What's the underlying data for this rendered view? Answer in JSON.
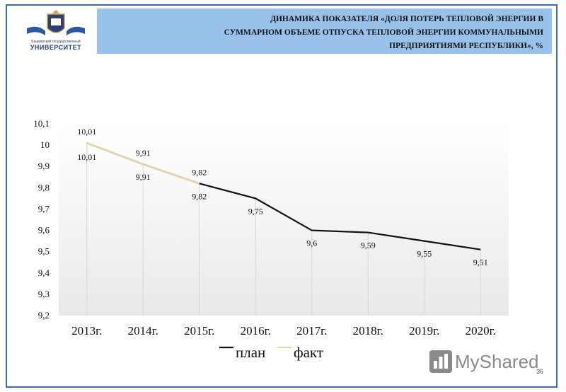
{
  "header": {
    "title_line1": "ДИНАМИКА ПОКАЗАТЕЛЯ «ДОЛЯ ПОТЕРЬ ТЕПЛОВОЙ ЭНЕРГИИ В",
    "title_line2": "СУММАРНОМ ОБЪЕМЕ ОТПУСКА ТЕПЛОВОЙ ЭНЕРГИИ КОММУНАЛЬНЫМИ",
    "title_line3": "ПРЕДПРИЯТИЯМИ РЕСПУБЛИКИ», %"
  },
  "logo": {
    "top_text": "Башкирский государственный",
    "name": "УНИВЕРСИТЕТ"
  },
  "page_number": "36",
  "watermark": "MyShared",
  "colors": {
    "plan": "#111111",
    "fact": "#e8d5a6",
    "header_bg": "#99c2eb",
    "frame": "#3d6aa8"
  },
  "chart_data": {
    "type": "line",
    "categories": [
      "2013г.",
      "2014г.",
      "2015г.",
      "2016г.",
      "2017г.",
      "2018г.",
      "2019г.",
      "2020г."
    ],
    "series": [
      {
        "name": "план",
        "values": [
          10.01,
          9.91,
          9.82,
          9.75,
          9.6,
          9.59,
          9.55,
          9.51
        ],
        "labels": [
          "10,01",
          "9,91",
          "9,82",
          "9,75",
          "9,6",
          "9,59",
          "9,55",
          "9,51"
        ]
      },
      {
        "name": "факт",
        "values": [
          10.01,
          9.91,
          9.82,
          null,
          null,
          null,
          null,
          null
        ],
        "labels": [
          "10,01",
          "9,91",
          "9,82",
          "",
          "",
          "",
          "",
          ""
        ]
      }
    ],
    "y_ticks": [
      "9,2",
      "9,3",
      "9,4",
      "9,5",
      "9,6",
      "9,7",
      "9,8",
      "9,9",
      "10",
      "10,1"
    ],
    "ylim": [
      9.2,
      10.1
    ],
    "legend": "bottom",
    "grid": false
  }
}
